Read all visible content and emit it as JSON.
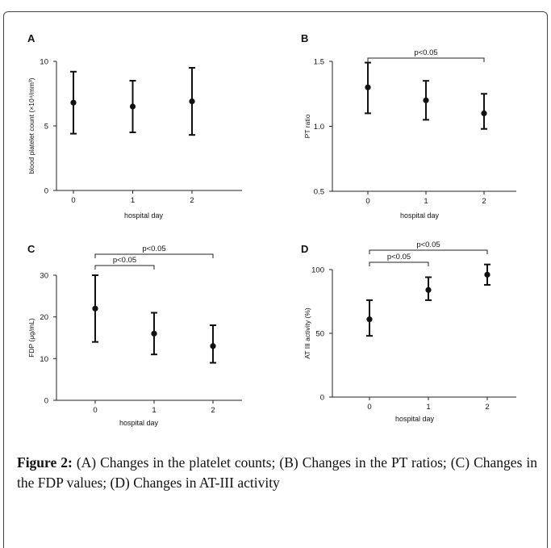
{
  "caption": {
    "label": "Figure 2:",
    "text": " (A) Changes in the platelet counts; (B) Changes in the PT ratios; (C) Changes in the FDP values; (D) Changes in AT-III activity"
  },
  "chart_data": [
    {
      "type": "errorbar",
      "panel": "A",
      "xlabel": "hospital day",
      "ylabel": "blood platelet count (×10⁴/mm³)",
      "x": [
        0,
        1,
        2
      ],
      "values": [
        6.8,
        6.5,
        6.9
      ],
      "lower": [
        4.4,
        4.5,
        4.3
      ],
      "upper": [
        9.2,
        8.5,
        9.5
      ],
      "ylim": [
        0,
        10
      ],
      "yticks": [
        0,
        5,
        10
      ],
      "brackets": []
    },
    {
      "type": "errorbar",
      "panel": "B",
      "xlabel": "hospital day",
      "ylabel": "PT ratio",
      "x": [
        0,
        1,
        2
      ],
      "values": [
        1.3,
        1.2,
        1.1
      ],
      "lower": [
        1.1,
        1.05,
        0.98
      ],
      "upper": [
        1.49,
        1.35,
        1.25
      ],
      "ylim": [
        0.5,
        1.5
      ],
      "yticks": [
        0.5,
        1.0,
        1.5
      ],
      "brackets": [
        {
          "from": 0,
          "to": 2,
          "label": "p<0.05"
        }
      ]
    },
    {
      "type": "errorbar",
      "panel": "C",
      "xlabel": "hospital day",
      "ylabel": "FDP (μg/mL)",
      "x": [
        0,
        1,
        2
      ],
      "values": [
        22,
        16,
        13
      ],
      "lower": [
        14,
        11,
        9
      ],
      "upper": [
        30,
        21,
        18
      ],
      "ylim": [
        0,
        30
      ],
      "yticks": [
        0,
        10,
        20,
        30
      ],
      "brackets": [
        {
          "from": 0,
          "to": 2,
          "label": "p<0.05"
        },
        {
          "from": 0,
          "to": 1,
          "label": "p<0.05"
        }
      ]
    },
    {
      "type": "errorbar",
      "panel": "D",
      "xlabel": "hospital day",
      "ylabel": "AT III activity (%)",
      "x": [
        0,
        1,
        2
      ],
      "values": [
        61,
        84,
        96
      ],
      "lower": [
        48,
        76,
        88
      ],
      "upper": [
        76,
        94,
        104
      ],
      "ylim": [
        0,
        100
      ],
      "yticks": [
        0,
        50,
        100
      ],
      "brackets": [
        {
          "from": 0,
          "to": 2,
          "label": "p<0.05"
        },
        {
          "from": 0,
          "to": 1,
          "label": "p<0.05"
        }
      ]
    }
  ]
}
